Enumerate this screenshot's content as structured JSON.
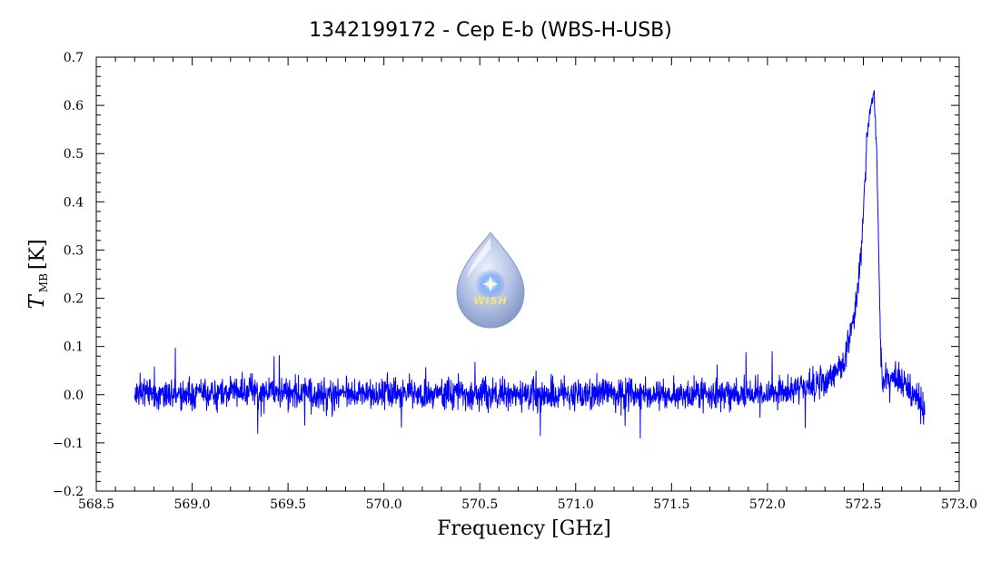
{
  "chart_data": {
    "type": "line",
    "title": "1342199172 - Cep E-b (WBS-H-USB)",
    "xlabel": "Frequency [GHz]",
    "ylabel": "T",
    "ylabel_sub": "MB",
    "ylabel_unit": "[K]",
    "xlim": [
      568.5,
      573.0
    ],
    "ylim": [
      -0.2,
      0.7
    ],
    "x_ticks": [
      "568.5",
      "569.0",
      "569.5",
      "570.0",
      "570.5",
      "571.0",
      "571.5",
      "572.0",
      "572.5",
      "573.0"
    ],
    "y_ticks": [
      "−0.2",
      "−0.1",
      "0.0",
      "0.1",
      "0.2",
      "0.3",
      "0.4",
      "0.5",
      "0.6",
      "0.7"
    ],
    "grid": false,
    "series": [
      {
        "color": "#0000ff",
        "x": [
          568.7,
          568.95,
          569.2,
          569.45,
          569.7,
          569.95,
          570.2,
          570.45,
          570.7,
          570.95,
          571.2,
          571.45,
          571.7,
          571.95,
          572.1,
          572.2,
          572.3,
          572.35,
          572.4,
          572.43,
          572.46,
          572.49,
          572.52,
          572.54,
          572.555,
          572.57,
          572.59,
          572.6,
          572.62,
          572.65,
          572.7,
          572.75,
          572.8,
          572.82
        ],
        "y": [
          0.005,
          0.0,
          0.005,
          0.005,
          0.0,
          0.005,
          0.0,
          0.0,
          0.0,
          0.0,
          0.0,
          0.0,
          0.0,
          0.0,
          0.01,
          0.015,
          0.03,
          0.045,
          0.07,
          0.12,
          0.18,
          0.3,
          0.54,
          0.6,
          0.63,
          0.5,
          0.1,
          0.02,
          0.04,
          0.04,
          0.02,
          0.01,
          -0.02,
          -0.05
        ]
      }
    ],
    "logo_text": "WISH"
  }
}
